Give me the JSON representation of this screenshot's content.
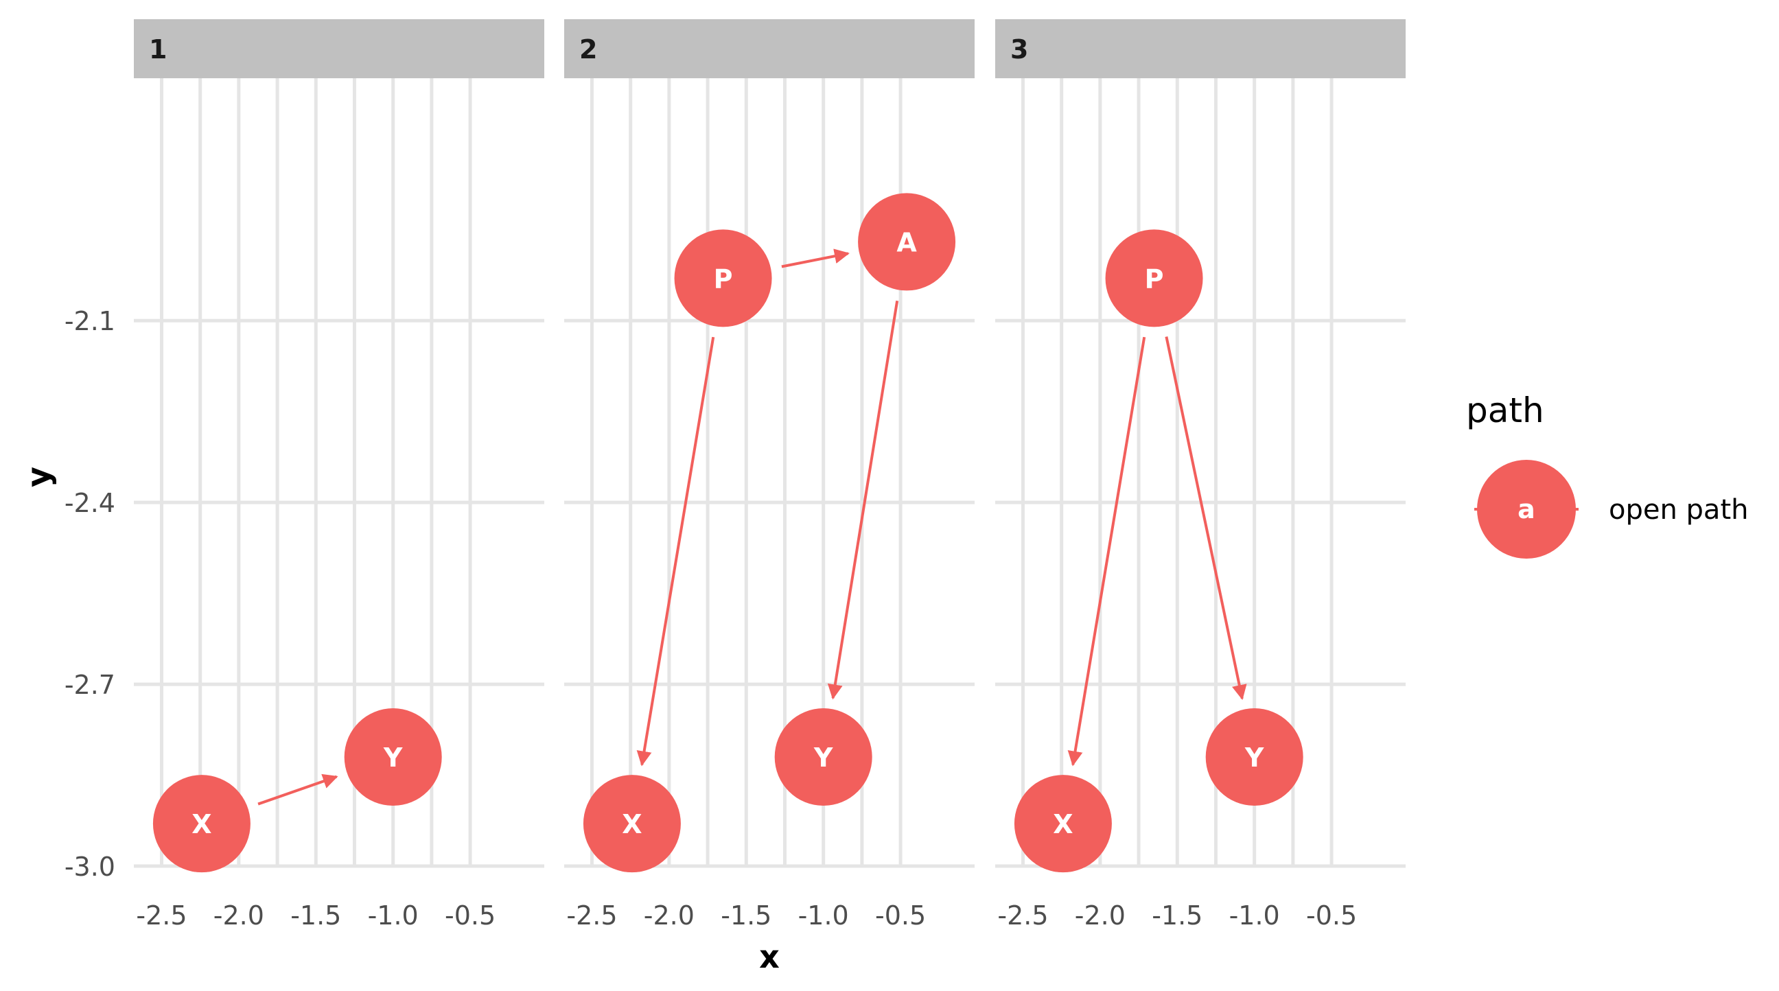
{
  "chart_data": {
    "type": "scatter",
    "xlabel": "x",
    "ylabel": "y",
    "xlim": [
      -2.68,
      -0.02
    ],
    "ylim": [
      -3.0,
      -1.7
    ],
    "x_ticks": [
      -2.5,
      -2.0,
      -1.5,
      -1.0,
      -0.5
    ],
    "x_tick_labels": [
      "-2.5",
      "-2.0",
      "-1.5",
      "-1.0",
      "-0.5"
    ],
    "y_ticks": [
      -3.0,
      -2.7,
      -2.4,
      -2.1
    ],
    "y_tick_labels": [
      "-3.0",
      "-2.7",
      "-2.4",
      "-2.1"
    ],
    "grid": true,
    "facets": [
      {
        "label": "1",
        "nodes": [
          {
            "name": "X",
            "x": -2.24,
            "y": -2.93
          },
          {
            "name": "Y",
            "x": -1.0,
            "y": -2.82
          }
        ],
        "edges": [
          {
            "from": "X",
            "to": "Y"
          }
        ]
      },
      {
        "label": "2",
        "nodes": [
          {
            "name": "P",
            "x": -1.65,
            "y": -2.03
          },
          {
            "name": "A",
            "x": -0.46,
            "y": -1.97
          },
          {
            "name": "X",
            "x": -2.24,
            "y": -2.93
          },
          {
            "name": "Y",
            "x": -1.0,
            "y": -2.82
          }
        ],
        "edges": [
          {
            "from": "P",
            "to": "A"
          },
          {
            "from": "P",
            "to": "X"
          },
          {
            "from": "A",
            "to": "Y"
          }
        ]
      },
      {
        "label": "3",
        "nodes": [
          {
            "name": "P",
            "x": -1.65,
            "y": -2.03
          },
          {
            "name": "X",
            "x": -2.24,
            "y": -2.93
          },
          {
            "name": "Y",
            "x": -1.0,
            "y": -2.82
          }
        ],
        "edges": [
          {
            "from": "P",
            "to": "X"
          },
          {
            "from": "P",
            "to": "Y"
          }
        ]
      }
    ],
    "legend": {
      "title": "path",
      "position": "right",
      "entries": [
        {
          "key_label": "a",
          "label": "open path",
          "color": "#F25F5C"
        }
      ]
    }
  },
  "colors": {
    "node": "#F25F5C",
    "edge": "#F25F5C",
    "strip_background": "#C0C0C0",
    "grid": "#E5E5E5",
    "node_text": "#FFFFFF"
  }
}
